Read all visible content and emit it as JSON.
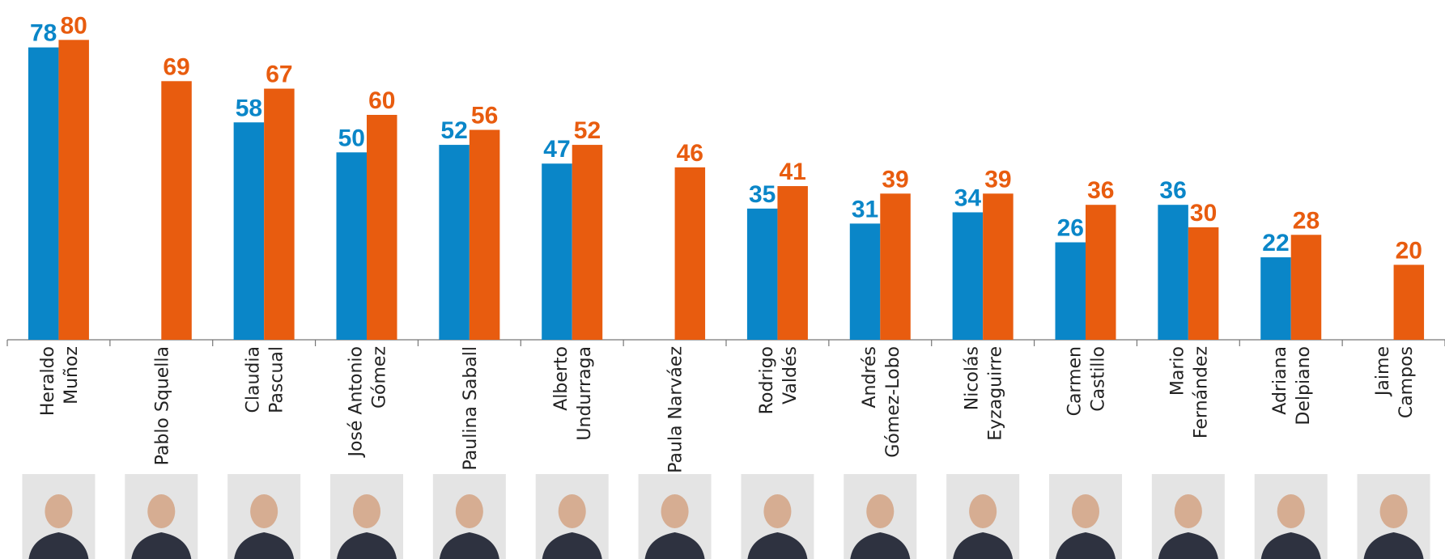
{
  "chart_data": {
    "type": "bar",
    "categories": [
      [
        "Heraldo",
        "Muñoz"
      ],
      [
        "Pablo Squella"
      ],
      [
        "Claudia",
        "Pascual"
      ],
      [
        "José Antonio",
        "Gómez"
      ],
      [
        "Paulina Saball"
      ],
      [
        "Alberto",
        "Undurraga"
      ],
      [
        "Paula Narváez"
      ],
      [
        "Rodrigo",
        "Valdés"
      ],
      [
        "Andrés",
        "Gómez-Lobo"
      ],
      [
        "Nicolás",
        "Eyzaguirre"
      ],
      [
        "Carmen",
        "Castillo"
      ],
      [
        "Mario",
        "Fernández"
      ],
      [
        "Adriana",
        "Delpiano"
      ],
      [
        "Jaime",
        "Campos"
      ]
    ],
    "series": [
      {
        "color": "#0a86c8",
        "values": [
          78,
          null,
          58,
          50,
          52,
          47,
          null,
          35,
          31,
          34,
          26,
          36,
          22,
          null
        ]
      },
      {
        "color": "#e85c0f",
        "values": [
          80,
          69,
          67,
          60,
          56,
          52,
          46,
          41,
          39,
          39,
          36,
          30,
          28,
          20
        ]
      }
    ],
    "ylim": [
      0,
      90
    ]
  }
}
